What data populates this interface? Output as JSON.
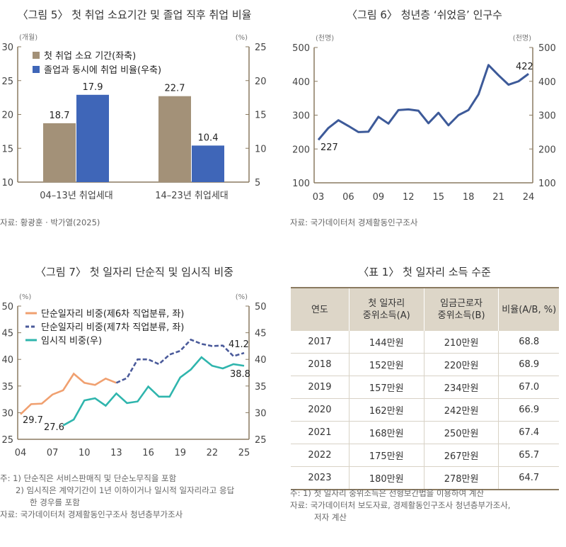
{
  "chart_data": [
    {
      "type": "bar",
      "title": "〈그림 5〉 첫 취업 소요기간 및 졸업 직후 취업 비율",
      "y_left_unit": "(개월)",
      "y_right_unit": "(%)",
      "y_left_lim": [
        10,
        30
      ],
      "y_right_lim": [
        5,
        25
      ],
      "y_left_ticks": [
        "10",
        "15",
        "20",
        "25",
        "30"
      ],
      "y_right_ticks": [
        "5",
        "10",
        "15",
        "20",
        "25"
      ],
      "categories": [
        "04–13년 취업세대",
        "14–23년 취업세대"
      ],
      "series": [
        {
          "name": "첫 취업 소요 기간(좌축)",
          "axis": "left",
          "color": "#a39178",
          "values": [
            18.7,
            22.7
          ],
          "labels": [
            "18.7",
            "22.7"
          ]
        },
        {
          "name": "졸업과 동시에 취업 비율(우축)",
          "axis": "right",
          "color": "#3f66b8",
          "values": [
            17.9,
            10.4
          ],
          "labels": [
            "17.9",
            "10.4"
          ]
        }
      ],
      "legend": "top-left",
      "source": "자료: 황광훈 · 박가열(2025)"
    },
    {
      "type": "line",
      "title": "〈그림 6〉 청년층 ‘쉬었음’ 인구수",
      "y_left_unit": "(천명)",
      "y_right_unit": "(천명)",
      "ylim": [
        100,
        500
      ],
      "y_ticks": [
        "100",
        "200",
        "300",
        "400",
        "500"
      ],
      "x_ticks": [
        "03",
        "06",
        "09",
        "12",
        "15",
        "18",
        "21",
        "24"
      ],
      "x": [
        2003,
        2004,
        2005,
        2006,
        2007,
        2008,
        2009,
        2010,
        2011,
        2012,
        2013,
        2014,
        2015,
        2016,
        2017,
        2018,
        2019,
        2020,
        2021,
        2022,
        2023,
        2024
      ],
      "series": [
        {
          "color": "#3d5a99",
          "values": [
            227,
            262,
            285,
            268,
            250,
            251,
            295,
            275,
            315,
            317,
            313,
            276,
            307,
            270,
            300,
            315,
            361,
            448,
            418,
            390,
            400,
            422
          ]
        }
      ],
      "annotations": [
        "227",
        "422"
      ],
      "source": "자료: 국가데이터처 경제활동인구조사"
    },
    {
      "type": "line",
      "title": "〈그림 7〉 첫 일자리 단순직 및 임시직 비중",
      "y_left_unit": "(%)",
      "y_right_unit": "(%)",
      "ylim": [
        25,
        50
      ],
      "y_ticks": [
        "25",
        "30",
        "35",
        "40",
        "45",
        "50"
      ],
      "x_ticks": [
        "04",
        "07",
        "10",
        "13",
        "16",
        "19",
        "22",
        "25"
      ],
      "series": [
        {
          "name": "단순일자리 비중(제6차 직업분류, 좌)",
          "color": "#f0a070",
          "style": "solid",
          "x_start": 2004,
          "values": [
            29.7,
            31.6,
            31.7,
            33.4,
            34.2,
            37.3,
            35.6,
            35.2,
            36.4,
            35.6
          ]
        },
        {
          "name": "단순일자리 비중(제7차 직업분류, 좌)",
          "color": "#4a5a9a",
          "style": "dashed",
          "x_start": 2013,
          "values": [
            35.6,
            36.5,
            40.0,
            40.0,
            39.1,
            40.9,
            41.6,
            43.7,
            42.9,
            42.5,
            42.6,
            40.6,
            41.2
          ]
        },
        {
          "name": "임시직 비중(우)",
          "color": "#2fb5ad",
          "style": "solid",
          "x_start": 2008,
          "values": [
            27.6,
            28.7,
            32.3,
            32.7,
            31.3,
            33.6,
            31.8,
            32.1,
            34.9,
            33.0,
            33.0,
            36.6,
            38.1,
            40.4,
            38.8,
            38.3,
            39.1,
            38.8
          ]
        }
      ],
      "annotations": [
        "29.7",
        "27.6",
        "41.2",
        "38.8"
      ],
      "legend": "top-left",
      "notes": [
        "주: 1) 단순직은 서비스판매직 및 단순노무직을 포함",
        "2) 임시직은 계약기간이 1년 이하이거나 일시적 일자리라고 응답",
        "한 경우를 포함"
      ],
      "source": "자료: 국가데이터처 경제활동인구조사 청년층부가조사"
    },
    {
      "type": "table",
      "title": "〈표 1〉 첫 일자리 소득 수준",
      "headers": [
        "연도",
        "첫 일자리\n중위소득(A)",
        "임금근로자\n중위소득(B)",
        "비율(A/B, %)"
      ],
      "rows": [
        [
          "2017",
          "144만원",
          "210만원",
          "68.8"
        ],
        [
          "2018",
          "152만원",
          "220만원",
          "68.9"
        ],
        [
          "2019",
          "157만원",
          "234만원",
          "67.0"
        ],
        [
          "2020",
          "162만원",
          "242만원",
          "66.9"
        ],
        [
          "2021",
          "168만원",
          "250만원",
          "67.4"
        ],
        [
          "2022",
          "175만원",
          "267만원",
          "65.7"
        ],
        [
          "2023",
          "180만원",
          "278만원",
          "64.7"
        ]
      ],
      "notes": [
        "주: 1) 첫 일자리 중위소득은 선형보간법을 이용하여 계산",
        "자료: 국가데이터처 보도자료, 경제활동인구조사 청년층부가조사,",
        "저자 계산"
      ]
    }
  ]
}
